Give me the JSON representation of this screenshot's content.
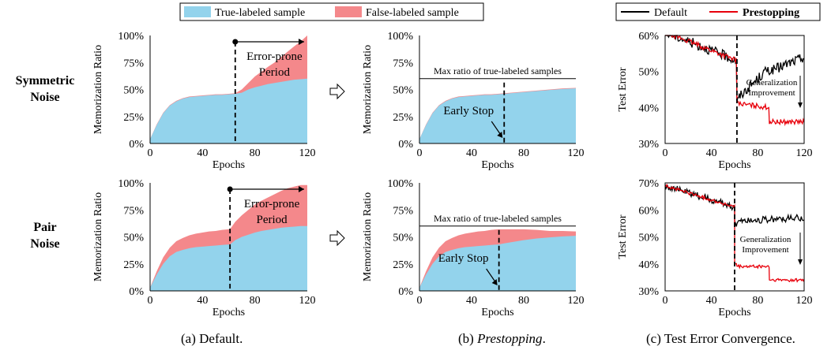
{
  "legend_top": {
    "true_label": "True-labeled sample",
    "false_label": "False-labeled sample"
  },
  "legend_right": {
    "default_label": "Default",
    "prestopping_label": "Prestopping"
  },
  "row_labels": [
    [
      "Symmetric",
      "Noise"
    ],
    [
      "Pair",
      "Noise"
    ]
  ],
  "captions": {
    "a": "(a) Default.",
    "b_prefix": "(b) ",
    "b_italic": "Prestopping",
    "b_suffix": ".",
    "c": "(c) Test Error Convergence."
  },
  "annotations": {
    "error_prone": [
      "Error-prone",
      "Period"
    ],
    "max_ratio": "Max ratio of true-labeled samples",
    "early_stop": "Early Stop",
    "generalization": [
      "Generalization",
      "Improvement"
    ]
  },
  "colors": {
    "true": "#93d3ec",
    "false": "#f4888b",
    "default": "#000000",
    "prestopping": "#e8000b"
  },
  "chart_data": [
    {
      "id": "a-top",
      "type": "area",
      "xlabel": "Epochs",
      "ylabel": "Memorization Ratio",
      "x": [
        0,
        5,
        10,
        15,
        20,
        25,
        30,
        35,
        40,
        45,
        50,
        55,
        60,
        65,
        70,
        75,
        80,
        85,
        90,
        95,
        100,
        105,
        110,
        115,
        120
      ],
      "series": [
        {
          "name": "True-labeled sample",
          "values": [
            0.04,
            0.17,
            0.28,
            0.35,
            0.39,
            0.415,
            0.43,
            0.435,
            0.44,
            0.445,
            0.45,
            0.45,
            0.455,
            0.46,
            0.47,
            0.5,
            0.52,
            0.535,
            0.55,
            0.56,
            0.57,
            0.58,
            0.59,
            0.595,
            0.6
          ]
        },
        {
          "name": "False-labeled sample",
          "values": [
            0,
            0.005,
            0.005,
            0.005,
            0.005,
            0.005,
            0.005,
            0.005,
            0.005,
            0.005,
            0.005,
            0.005,
            0.005,
            0.005,
            0.03,
            0.06,
            0.1,
            0.13,
            0.16,
            0.19,
            0.23,
            0.27,
            0.31,
            0.35,
            0.4
          ]
        }
      ],
      "xticks": [
        "0",
        "40",
        "80",
        "120"
      ],
      "yticks": [
        "0%",
        "25%",
        "50%",
        "75%",
        "100%"
      ],
      "xlim": [
        0,
        120
      ],
      "ylim": [
        0,
        1
      ],
      "vline": 65
    },
    {
      "id": "b-top",
      "type": "area",
      "xlabel": "Epochs",
      "ylabel": "Memorization Ratio",
      "x": [
        0,
        5,
        10,
        15,
        20,
        25,
        30,
        35,
        40,
        45,
        50,
        55,
        60,
        65,
        70,
        80,
        90,
        100,
        110,
        120
      ],
      "series": [
        {
          "name": "True-labeled sample",
          "values": [
            0.04,
            0.17,
            0.28,
            0.35,
            0.39,
            0.415,
            0.43,
            0.435,
            0.44,
            0.445,
            0.45,
            0.45,
            0.455,
            0.46,
            0.465,
            0.475,
            0.485,
            0.495,
            0.505,
            0.51
          ]
        },
        {
          "name": "False-labeled sample",
          "values": [
            0,
            0.005,
            0.005,
            0.005,
            0.005,
            0.005,
            0.005,
            0.005,
            0.005,
            0.005,
            0.005,
            0.005,
            0.005,
            0.005,
            0.005,
            0.005,
            0.005,
            0.005,
            0.005,
            0.005
          ]
        }
      ],
      "xticks": [
        "0",
        "40",
        "80",
        "120"
      ],
      "yticks": [
        "0%",
        "25%",
        "50%",
        "75%",
        "100%"
      ],
      "xlim": [
        0,
        120
      ],
      "ylim": [
        0,
        1
      ],
      "hline": 0.6,
      "vline": 65
    },
    {
      "id": "c-top",
      "type": "line",
      "xlabel": "Epochs",
      "ylabel": "Test Error",
      "xticks": [
        "0",
        "40",
        "80",
        "120"
      ],
      "yticks": [
        "30%",
        "40%",
        "50%",
        "60%"
      ],
      "xlim": [
        0,
        120
      ],
      "ylim": [
        30,
        60
      ],
      "vline": 62,
      "series": [
        {
          "name": "Default",
          "phases": [
            [
              0,
              62,
              61,
              53
            ],
            [
              62,
              64,
              42,
              42
            ],
            [
              64,
              90,
              43,
              51
            ],
            [
              90,
              120,
              50,
              54
            ]
          ],
          "noise": 1.4
        },
        {
          "name": "Prestopping",
          "phases": [
            [
              0,
              62,
              61,
              53
            ],
            [
              62,
              64,
              42,
              42
            ],
            [
              64,
              90,
              41,
              40
            ],
            [
              90,
              120,
              36,
              36
            ]
          ],
          "noise": 0.7
        }
      ]
    },
    {
      "id": "a-bot",
      "type": "area",
      "xlabel": "Epochs",
      "ylabel": "Memorization Ratio",
      "x": [
        0,
        5,
        10,
        15,
        20,
        25,
        30,
        35,
        40,
        45,
        50,
        55,
        60,
        61,
        65,
        70,
        75,
        80,
        85,
        90,
        95,
        100,
        105,
        110,
        115,
        120
      ],
      "series": [
        {
          "name": "True-labeled sample",
          "values": [
            0.03,
            0.15,
            0.25,
            0.32,
            0.36,
            0.38,
            0.395,
            0.405,
            0.41,
            0.415,
            0.42,
            0.425,
            0.43,
            0.43,
            0.47,
            0.5,
            0.52,
            0.54,
            0.555,
            0.565,
            0.575,
            0.585,
            0.59,
            0.595,
            0.6,
            0.6
          ]
        },
        {
          "name": "False-labeled sample",
          "values": [
            0,
            0.03,
            0.06,
            0.08,
            0.1,
            0.11,
            0.12,
            0.125,
            0.13,
            0.135,
            0.135,
            0.14,
            0.14,
            0.14,
            0.17,
            0.2,
            0.23,
            0.26,
            0.28,
            0.3,
            0.32,
            0.34,
            0.36,
            0.37,
            0.38,
            0.38
          ]
        }
      ],
      "xticks": [
        "0",
        "40",
        "80",
        "120"
      ],
      "yticks": [
        "0%",
        "25%",
        "50%",
        "75%",
        "100%"
      ],
      "xlim": [
        0,
        120
      ],
      "ylim": [
        0,
        1
      ],
      "vline": 61
    },
    {
      "id": "b-bot",
      "type": "area",
      "xlabel": "Epochs",
      "ylabel": "Memorization Ratio",
      "x": [
        0,
        5,
        10,
        15,
        20,
        25,
        30,
        35,
        40,
        45,
        50,
        55,
        60,
        61,
        65,
        70,
        80,
        90,
        100,
        110,
        120
      ],
      "series": [
        {
          "name": "True-labeled sample",
          "values": [
            0.03,
            0.15,
            0.25,
            0.32,
            0.36,
            0.38,
            0.395,
            0.405,
            0.41,
            0.415,
            0.42,
            0.425,
            0.43,
            0.43,
            0.44,
            0.45,
            0.47,
            0.485,
            0.495,
            0.505,
            0.51
          ]
        },
        {
          "name": "False-labeled sample",
          "values": [
            0,
            0.03,
            0.06,
            0.08,
            0.1,
            0.11,
            0.12,
            0.125,
            0.13,
            0.135,
            0.135,
            0.14,
            0.14,
            0.14,
            0.13,
            0.12,
            0.1,
            0.08,
            0.06,
            0.05,
            0.04
          ]
        }
      ],
      "xticks": [
        "0",
        "40",
        "80",
        "120"
      ],
      "yticks": [
        "0%",
        "25%",
        "50%",
        "75%",
        "100%"
      ],
      "xlim": [
        0,
        120
      ],
      "ylim": [
        0,
        1
      ],
      "hline": 0.6,
      "vline": 61
    },
    {
      "id": "c-bot",
      "type": "line",
      "xlabel": "Epochs",
      "ylabel": "Test Error",
      "xticks": [
        "0",
        "40",
        "80",
        "120"
      ],
      "yticks": [
        "30%",
        "40%",
        "50%",
        "60%",
        "70%"
      ],
      "xlim": [
        0,
        120
      ],
      "ylim": [
        30,
        70
      ],
      "vline": 60,
      "series": [
        {
          "name": "Default",
          "phases": [
            [
              0,
              60,
              69,
              61
            ],
            [
              60,
              62,
              54,
              54
            ],
            [
              62,
              120,
              56,
              57
            ]
          ],
          "noise": 1.3
        },
        {
          "name": "Prestopping",
          "phases": [
            [
              0,
              60,
              69,
              61
            ],
            [
              60,
              62,
              40,
              40
            ],
            [
              62,
              90,
              39,
              39
            ],
            [
              90,
              120,
              34,
              34
            ]
          ],
          "noise": 0.6
        }
      ]
    }
  ]
}
